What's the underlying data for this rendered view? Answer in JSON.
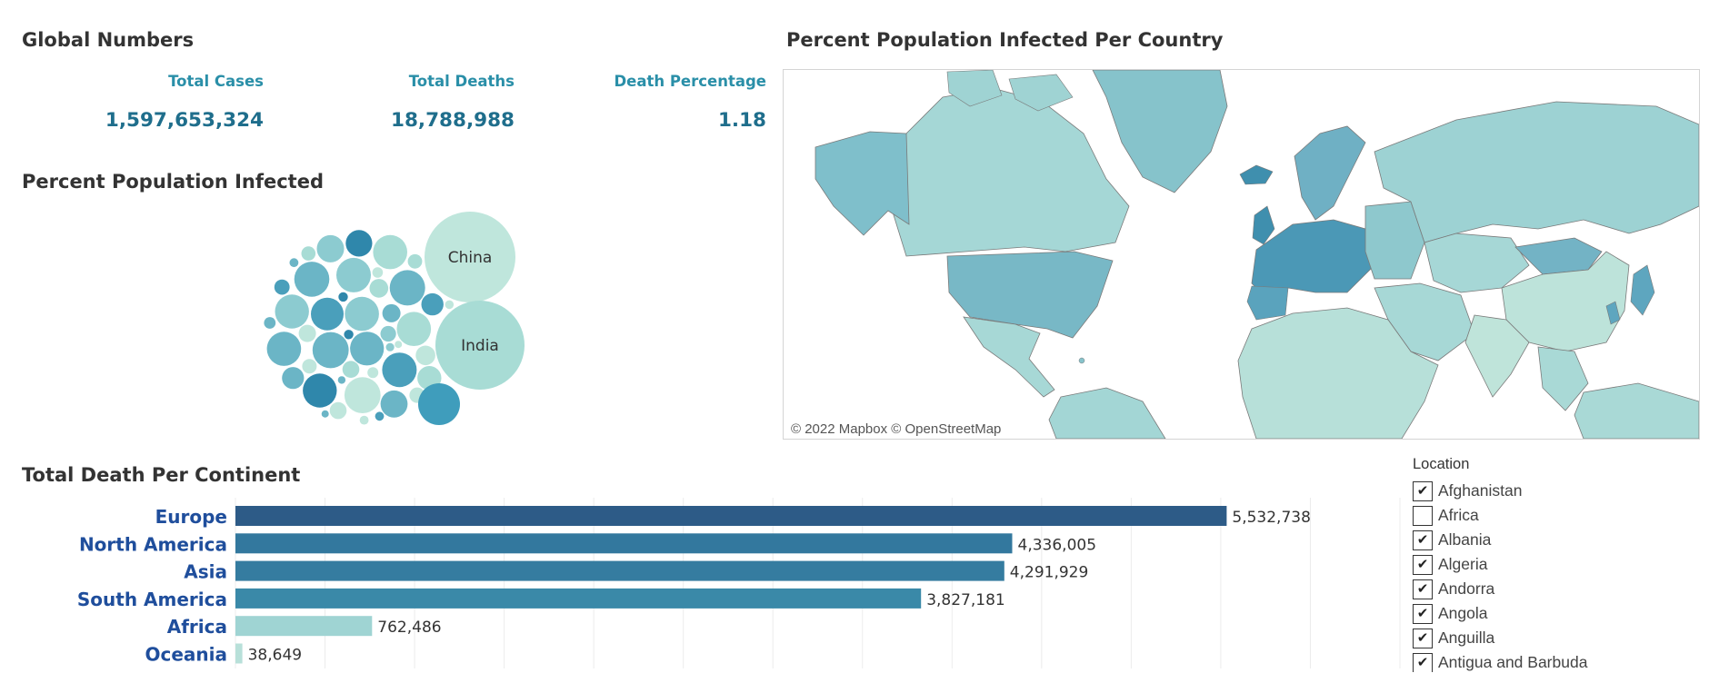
{
  "global_numbers": {
    "title": "Global Numbers",
    "total_cases_label": "Total Cases",
    "total_cases_value": "1,597,653,324",
    "total_deaths_label": "Total Deaths",
    "total_deaths_value": "18,788,988",
    "death_pct_label": "Death Percentage",
    "death_pct_value": "1.18"
  },
  "bubble_section": {
    "title": "Percent Population Infected",
    "labeled": [
      "China",
      "India"
    ]
  },
  "map_section": {
    "title": "Percent Population Infected Per Country",
    "credit": "© 2022 Mapbox © OpenStreetMap"
  },
  "chart_data": {
    "type": "bar",
    "title": "Total Death Per Continent",
    "orientation": "horizontal",
    "categories": [
      "Europe",
      "North America",
      "Asia",
      "South America",
      "Africa",
      "Oceania"
    ],
    "values": [
      5532738,
      4336005,
      4291929,
      3827181,
      762486,
      38649
    ],
    "labels": [
      "5,532,738",
      "4,336,005",
      "4,291,929",
      "3,827,181",
      "762,486",
      "38,649"
    ],
    "colors": [
      "#2d5b87",
      "#33789e",
      "#357ca0",
      "#3a89a8",
      "#9fd4d3",
      "#b8e0d9"
    ],
    "xlim": [
      0,
      6500000
    ],
    "grid": true
  },
  "legend": {
    "title": "Location",
    "items": [
      {
        "label": "Afghanistan",
        "checked": true,
        "mark": "✔"
      },
      {
        "label": "Africa",
        "checked": false,
        "mark": ""
      },
      {
        "label": "Albania",
        "checked": true,
        "mark": "✔"
      },
      {
        "label": "Algeria",
        "checked": true,
        "mark": "✔"
      },
      {
        "label": "Andorra",
        "checked": true,
        "mark": "✔"
      },
      {
        "label": "Angola",
        "checked": true,
        "mark": "✔"
      },
      {
        "label": "Anguilla",
        "checked": true,
        "mark": "✔"
      },
      {
        "label": "Antigua and Barbuda",
        "checked": true,
        "mark": "✔"
      }
    ]
  },
  "colors": {
    "accent": "#2a8fa8",
    "kpi_value": "#1f6e8c",
    "category_label": "#1f4e9c"
  }
}
